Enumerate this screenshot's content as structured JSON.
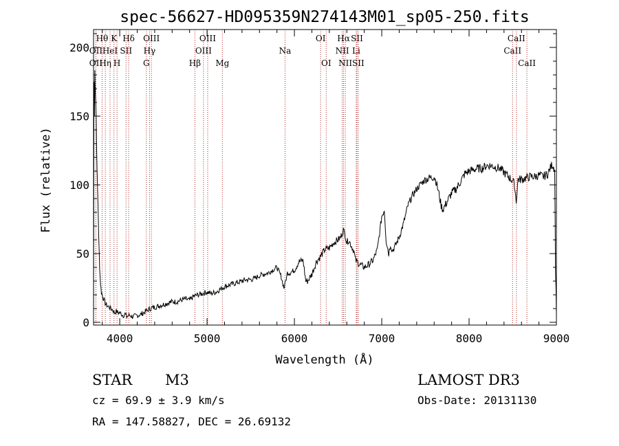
{
  "chart_data": {
    "type": "line",
    "title": "spec-56627-HD095359N274143M01_sp05-250.fits",
    "xlabel": "Wavelength (Å)",
    "ylabel": "Flux (relative)",
    "xlim": [
      3700,
      9000
    ],
    "ylim": [
      -2,
      213
    ],
    "xticks": [
      4000,
      5000,
      6000,
      7000,
      8000,
      9000
    ],
    "xtick_labels": [
      "4000",
      "5000",
      "6000",
      "7000",
      "8000",
      "9000"
    ],
    "yticks": [
      0,
      50,
      100,
      150,
      200
    ],
    "ytick_labels": [
      "0",
      "50",
      "100",
      "150",
      "200"
    ],
    "grid": false,
    "series": [
      {
        "name": "flux",
        "x": [
          3700,
          3705,
          3710,
          3715,
          3720,
          3725,
          3730,
          3740,
          3750,
          3760,
          3770,
          3780,
          3790,
          3800,
          3820,
          3840,
          3860,
          3880,
          3900,
          3920,
          3940,
          3960,
          3980,
          4000,
          4020,
          4040,
          4060,
          4080,
          4100,
          4120,
          4150,
          4200,
          4250,
          4300,
          4350,
          4400,
          4450,
          4500,
          4550,
          4600,
          4650,
          4700,
          4750,
          4800,
          4850,
          4900,
          4950,
          5000,
          5050,
          5100,
          5150,
          5200,
          5250,
          5300,
          5350,
          5400,
          5450,
          5500,
          5550,
          5600,
          5650,
          5700,
          5750,
          5800,
          5850,
          5880,
          5900,
          5920,
          5950,
          6000,
          6050,
          6100,
          6130,
          6150,
          6200,
          6250,
          6300,
          6350,
          6400,
          6450,
          6500,
          6530,
          6560,
          6580,
          6600,
          6620,
          6650,
          6680,
          6700,
          6720,
          6750,
          6800,
          6850,
          6900,
          6950,
          7000,
          7030,
          7050,
          7080,
          7100,
          7120,
          7150,
          7200,
          7250,
          7300,
          7350,
          7400,
          7450,
          7500,
          7550,
          7600,
          7620,
          7650,
          7680,
          7700,
          7750,
          7800,
          7850,
          7900,
          7950,
          8000,
          8050,
          8100,
          8150,
          8200,
          8250,
          8300,
          8350,
          8400,
          8450,
          8500,
          8520,
          8540,
          8560,
          8600,
          8650,
          8700,
          8750,
          8800,
          8850,
          8900,
          8950,
          8980,
          8990,
          9000
        ],
        "y": [
          3,
          175,
          150,
          185,
          170,
          160,
          150,
          110,
          90,
          60,
          40,
          28,
          22,
          20,
          16,
          13,
          12,
          11,
          10,
          9,
          7,
          8,
          7,
          7,
          6,
          5,
          6,
          4,
          5,
          5,
          4,
          5,
          6,
          8,
          10,
          11,
          12,
          13,
          14,
          15,
          15,
          16,
          17,
          16,
          19,
          20,
          21,
          22,
          21,
          22,
          24,
          26,
          27,
          28,
          29,
          30,
          31,
          31,
          32,
          34,
          35,
          36,
          38,
          40,
          33,
          25,
          30,
          36,
          36,
          38,
          44,
          45,
          30,
          30,
          35,
          44,
          48,
          53,
          54,
          58,
          60,
          62,
          67,
          64,
          58,
          60,
          56,
          52,
          45,
          44,
          42,
          40,
          42,
          45,
          53,
          77,
          82,
          60,
          50,
          57,
          52,
          55,
          62,
          72,
          85,
          92,
          97,
          101,
          104,
          105,
          106,
          103,
          95,
          85,
          82,
          88,
          94,
          97,
          102,
          108,
          110,
          111,
          112,
          112,
          114,
          114,
          113,
          112,
          109,
          106,
          103,
          100,
          88,
          104,
          104,
          105,
          106,
          106,
          107,
          106,
          108,
          115,
          112,
          40,
          5
        ]
      }
    ],
    "lines": [
      {
        "name": "OII",
        "x": 3727,
        "row": 2
      },
      {
        "name": "Hθ",
        "x": 3798,
        "row": 0
      },
      {
        "name": "OII",
        "x": 3727,
        "row": 1
      },
      {
        "name": "Hη",
        "x": 3835,
        "row": 2
      },
      {
        "name": "HeI",
        "x": 3889,
        "row": 1
      },
      {
        "name": "K",
        "x": 3934,
        "row": 0
      },
      {
        "name": "H",
        "x": 3969,
        "row": 2
      },
      {
        "name": "SII",
        "x": 4072,
        "row": 1
      },
      {
        "name": "Hδ",
        "x": 4102,
        "row": 0
      },
      {
        "name": "G",
        "x": 4305,
        "row": 2
      },
      {
        "name": "Hγ",
        "x": 4341,
        "row": 1
      },
      {
        "name": "OIII",
        "x": 4363,
        "row": 0
      },
      {
        "name": "Hβ",
        "x": 4861,
        "row": 2
      },
      {
        "name": "OIII",
        "x": 4959,
        "row": 1
      },
      {
        "name": "OIII",
        "x": 5007,
        "row": 0
      },
      {
        "name": "Mg",
        "x": 5175,
        "row": 2
      },
      {
        "name": "Na",
        "x": 5893,
        "row": 1
      },
      {
        "name": "OI",
        "x": 6300,
        "row": 0
      },
      {
        "name": "OI",
        "x": 6364,
        "row": 2
      },
      {
        "name": "NII",
        "x": 6548,
        "row": 1
      },
      {
        "name": "Hα",
        "x": 6563,
        "row": 0
      },
      {
        "name": "NII",
        "x": 6583,
        "row": 2
      },
      {
        "name": "Li",
        "x": 6708,
        "row": 1
      },
      {
        "name": "SII",
        "x": 6716,
        "row": 0
      },
      {
        "name": "SII",
        "x": 6731,
        "row": 2
      },
      {
        "name": "CaII",
        "x": 8498,
        "row": 1
      },
      {
        "name": "CaII",
        "x": 8542,
        "row": 0
      },
      {
        "name": "CaII",
        "x": 8662,
        "row": 2
      }
    ],
    "line_color": "#b22222"
  },
  "info": {
    "object_class": "STAR",
    "subclass": "M3",
    "survey": "LAMOST DR3",
    "redshift": "cz = 69.9 ± 3.9 km/s",
    "obs_date": "Obs-Date: 20131130",
    "coords": "RA = 147.58827, DEC =  26.69132"
  }
}
